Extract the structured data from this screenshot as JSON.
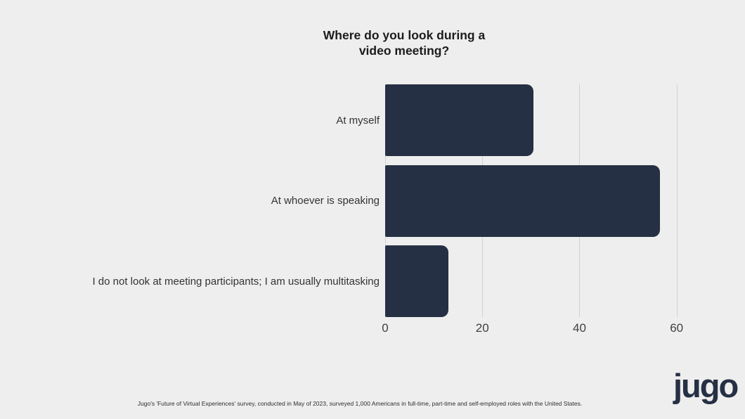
{
  "header": {
    "title_lines": [
      "Where do you look during a",
      "video meeting?"
    ]
  },
  "chart_data": {
    "type": "bar",
    "orientation": "horizontal",
    "title": "Where do you look during a video meeting?",
    "categories": [
      "At myself",
      "At whoever is speaking",
      "I do not look at meeting participants; I am usually multitasking"
    ],
    "values": [
      30.5,
      56.5,
      13
    ],
    "xlabel": "",
    "ylabel": "",
    "xlim": [
      0,
      60
    ],
    "xticks": [
      0,
      20,
      40,
      60
    ],
    "grid": "vertical-gridlines",
    "legend_position": "none",
    "bar_color": "#263044",
    "gridline_color": "#d2d2d2",
    "background_color": "#eeeeee",
    "label_color": "#333333",
    "tick_color": "#404040"
  },
  "footer": {
    "source_note": "Jugo's 'Future of Virtual Experiences' survey, conducted in May of 2023, surveyed 1,000 Americans in full-time, part-time and self-employed roles with the United States.",
    "logo_text": "jugo"
  }
}
